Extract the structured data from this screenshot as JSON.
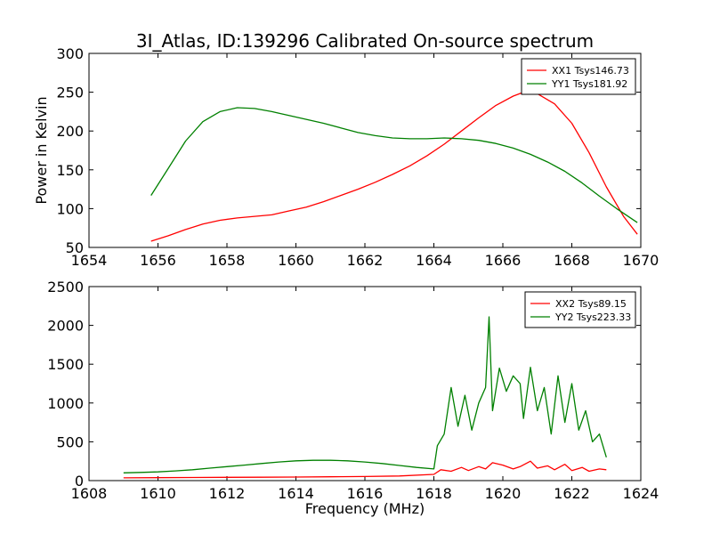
{
  "figure": {
    "title": "3I_Atlas, ID:139296 Calibrated On-source spectrum"
  },
  "chart_data": [
    {
      "type": "line",
      "title": "3I_Atlas, ID:139296 Calibrated On-source spectrum",
      "xlabel": "",
      "ylabel": "Power in Kelvin",
      "xlim": [
        1654,
        1670
      ],
      "ylim": [
        50,
        300
      ],
      "xticks": [
        "1654",
        "1656",
        "1658",
        "1660",
        "1662",
        "1664",
        "1666",
        "1668",
        "1670"
      ],
      "yticks": [
        "50",
        "100",
        "150",
        "200",
        "250",
        "300"
      ],
      "legend_position": "top-right",
      "series": [
        {
          "name": "XX1 Tsys146.73",
          "color": "#ff0000",
          "x": [
            1655.8,
            1656.3,
            1656.8,
            1657.3,
            1657.8,
            1658.3,
            1658.8,
            1659.3,
            1659.8,
            1660.3,
            1660.8,
            1661.3,
            1661.8,
            1662.3,
            1662.8,
            1663.3,
            1663.8,
            1664.3,
            1664.8,
            1665.3,
            1665.8,
            1666.3,
            1666.6,
            1667.0,
            1667.5,
            1668.0,
            1668.5,
            1669.0,
            1669.5,
            1669.9
          ],
          "y": [
            58,
            65,
            73,
            80,
            85,
            88,
            90,
            92,
            97,
            102,
            109,
            117,
            125,
            134,
            144,
            155,
            168,
            183,
            200,
            217,
            233,
            245,
            250,
            248,
            235,
            210,
            172,
            128,
            90,
            67
          ]
        },
        {
          "name": "YY1 Tsys181.92",
          "color": "#008000",
          "x": [
            1655.8,
            1656.3,
            1656.8,
            1657.3,
            1657.8,
            1658.3,
            1658.8,
            1659.3,
            1659.8,
            1660.3,
            1660.8,
            1661.3,
            1661.8,
            1662.3,
            1662.8,
            1663.3,
            1663.8,
            1664.3,
            1664.8,
            1665.3,
            1665.8,
            1666.3,
            1666.8,
            1667.3,
            1667.8,
            1668.3,
            1668.8,
            1669.3,
            1669.9
          ],
          "y": [
            117,
            152,
            187,
            212,
            225,
            230,
            229,
            225,
            220,
            215,
            210,
            204,
            198,
            194,
            191,
            190,
            190,
            191,
            190,
            188,
            184,
            178,
            170,
            160,
            148,
            133,
            116,
            100,
            82
          ]
        }
      ]
    },
    {
      "type": "line",
      "title": "",
      "xlabel": "Frequency (MHz)",
      "ylabel": "",
      "xlim": [
        1608,
        1624
      ],
      "ylim": [
        0,
        2500
      ],
      "xticks": [
        "1608",
        "1610",
        "1612",
        "1614",
        "1616",
        "1618",
        "1620",
        "1622",
        "1624"
      ],
      "yticks": [
        "0",
        "500",
        "1000",
        "1500",
        "2000",
        "2500"
      ],
      "legend_position": "top-right",
      "series": [
        {
          "name": "XX2 Tsys89.15",
          "color": "#ff0000",
          "x": [
            1609.0,
            1610.0,
            1611.0,
            1612.0,
            1613.0,
            1614.0,
            1615.0,
            1616.0,
            1617.0,
            1618.0,
            1618.2,
            1618.5,
            1618.8,
            1619.0,
            1619.3,
            1619.5,
            1619.7,
            1620.0,
            1620.3,
            1620.5,
            1620.8,
            1621.0,
            1621.3,
            1621.5,
            1621.8,
            1622.0,
            1622.3,
            1622.5,
            1622.8,
            1623.0
          ],
          "y": [
            35,
            38,
            40,
            42,
            44,
            46,
            49,
            53,
            60,
            80,
            140,
            120,
            170,
            130,
            180,
            150,
            230,
            200,
            150,
            180,
            250,
            160,
            190,
            140,
            210,
            130,
            170,
            120,
            150,
            140
          ]
        },
        {
          "name": "YY2 Tsys223.33",
          "color": "#008000",
          "x": [
            1609.0,
            1609.5,
            1610.0,
            1610.5,
            1611.0,
            1611.5,
            1612.0,
            1612.5,
            1613.0,
            1613.5,
            1614.0,
            1614.5,
            1615.0,
            1615.5,
            1616.0,
            1616.5,
            1617.0,
            1617.5,
            1618.0,
            1618.1,
            1618.3,
            1618.5,
            1618.7,
            1618.9,
            1619.1,
            1619.3,
            1619.5,
            1619.6,
            1619.7,
            1619.9,
            1620.1,
            1620.3,
            1620.5,
            1620.6,
            1620.8,
            1621.0,
            1621.2,
            1621.4,
            1621.6,
            1621.8,
            1622.0,
            1622.2,
            1622.4,
            1622.6,
            1622.8,
            1623.0
          ],
          "y": [
            100,
            105,
            112,
            125,
            140,
            160,
            180,
            200,
            220,
            240,
            255,
            262,
            262,
            255,
            240,
            220,
            195,
            170,
            150,
            450,
            600,
            1200,
            700,
            1100,
            650,
            1000,
            1200,
            2110,
            900,
            1450,
            1150,
            1350,
            1250,
            800,
            1460,
            900,
            1200,
            600,
            1350,
            750,
            1250,
            650,
            900,
            500,
            600,
            300
          ]
        }
      ]
    }
  ]
}
